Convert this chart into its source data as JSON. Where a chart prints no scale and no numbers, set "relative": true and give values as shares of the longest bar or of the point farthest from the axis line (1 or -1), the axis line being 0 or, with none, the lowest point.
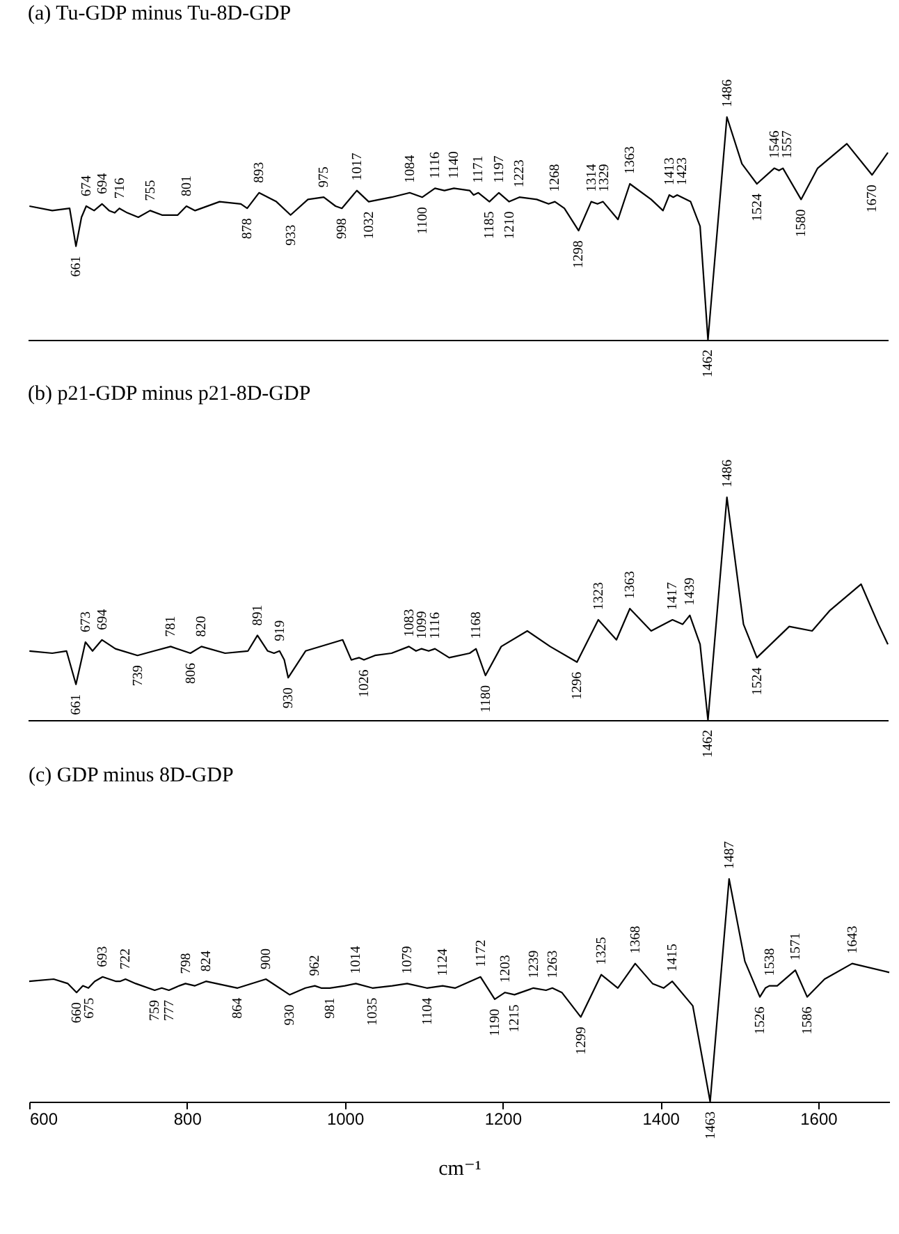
{
  "chart_data": [
    {
      "type": "line",
      "relative": true,
      "title": "(a) Tu-GDP minus Tu-8D-GDP",
      "xlim": [
        600,
        1690
      ],
      "tick_labels": false,
      "series": [
        {
          "color": "#000000",
          "x": [
            602,
            631,
            653,
            661,
            668,
            674,
            684,
            694,
            703,
            710,
            716,
            726,
            740,
            755,
            770,
            790,
            801,
            812,
            843,
            870,
            878,
            893,
            915,
            933,
            955,
            975,
            990,
            998,
            1017,
            1032,
            1061,
            1084,
            1100,
            1116,
            1128,
            1140,
            1160,
            1165,
            1171,
            1185,
            1197,
            1210,
            1223,
            1245,
            1260,
            1268,
            1280,
            1298,
            1314,
            1322,
            1329,
            1348,
            1363,
            1390,
            1405,
            1413,
            1418,
            1423,
            1440,
            1452,
            1462,
            1486,
            1505,
            1524,
            1546,
            1552,
            1557,
            1580,
            1601,
            1638,
            1670,
            1690
          ],
          "values": [
            0.6,
            0.58,
            0.59,
            0.42,
            0.55,
            0.6,
            0.58,
            0.61,
            0.58,
            0.57,
            0.59,
            0.57,
            0.55,
            0.58,
            0.56,
            0.56,
            0.6,
            0.58,
            0.62,
            0.61,
            0.59,
            0.66,
            0.62,
            0.56,
            0.63,
            0.64,
            0.6,
            0.59,
            0.67,
            0.62,
            0.64,
            0.66,
            0.64,
            0.68,
            0.67,
            0.68,
            0.67,
            0.65,
            0.66,
            0.62,
            0.66,
            0.62,
            0.64,
            0.63,
            0.61,
            0.62,
            0.59,
            0.49,
            0.62,
            0.61,
            0.62,
            0.54,
            0.7,
            0.63,
            0.58,
            0.65,
            0.64,
            0.65,
            0.62,
            0.51,
            0.0,
            1.0,
            0.79,
            0.7,
            0.77,
            0.76,
            0.77,
            0.63,
            0.77,
            0.88,
            0.74,
            0.84
          ]
        }
      ],
      "annotations": [
        {
          "text": "661",
          "x": 661,
          "y": 0.42
        },
        {
          "text": "674",
          "x": 674,
          "y": 0.6
        },
        {
          "text": "694",
          "x": 694,
          "y": 0.61
        },
        {
          "text": "716",
          "x": 716,
          "y": 0.59
        },
        {
          "text": "755",
          "x": 755,
          "y": 0.58
        },
        {
          "text": "801",
          "x": 801,
          "y": 0.6
        },
        {
          "text": "878",
          "x": 878,
          "y": 0.59
        },
        {
          "text": "893",
          "x": 893,
          "y": 0.66
        },
        {
          "text": "933",
          "x": 933,
          "y": 0.56
        },
        {
          "text": "975",
          "x": 975,
          "y": 0.64
        },
        {
          "text": "998",
          "x": 998,
          "y": 0.59
        },
        {
          "text": "1017",
          "x": 1017,
          "y": 0.67
        },
        {
          "text": "1032",
          "x": 1032,
          "y": 0.62
        },
        {
          "text": "1084",
          "x": 1084,
          "y": 0.66
        },
        {
          "text": "1100",
          "x": 1100,
          "y": 0.64
        },
        {
          "text": "1116",
          "x": 1116,
          "y": 0.68
        },
        {
          "text": "1140",
          "x": 1140,
          "y": 0.68
        },
        {
          "text": "1171",
          "x": 1171,
          "y": 0.66
        },
        {
          "text": "1185",
          "x": 1185,
          "y": 0.62
        },
        {
          "text": "1197",
          "x": 1197,
          "y": 0.66
        },
        {
          "text": "1210",
          "x": 1210,
          "y": 0.62
        },
        {
          "text": "1223",
          "x": 1223,
          "y": 0.64
        },
        {
          "text": "1268",
          "x": 1268,
          "y": 0.62
        },
        {
          "text": "1298",
          "x": 1298,
          "y": 0.49
        },
        {
          "text": "1314",
          "x": 1314,
          "y": 0.62
        },
        {
          "text": "1329",
          "x": 1329,
          "y": 0.62
        },
        {
          "text": "1363",
          "x": 1363,
          "y": 0.7
        },
        {
          "text": "1413",
          "x": 1413,
          "y": 0.65
        },
        {
          "text": "1423",
          "x": 1423,
          "y": 0.65
        },
        {
          "text": "1462",
          "x": 1462,
          "y": 0.0
        },
        {
          "text": "1486",
          "x": 1486,
          "y": 1.0
        },
        {
          "text": "1524",
          "x": 1524,
          "y": 0.7
        },
        {
          "text": "1546",
          "x": 1546,
          "y": 0.77
        },
        {
          "text": "1557",
          "x": 1557,
          "y": 0.77
        },
        {
          "text": "1580",
          "x": 1580,
          "y": 0.63
        },
        {
          "text": "1670",
          "x": 1670,
          "y": 0.74
        }
      ]
    },
    {
      "type": "line",
      "relative": true,
      "title": "(b) p21-GDP minus p21-8D-GDP",
      "xlim": [
        600,
        1690
      ],
      "tick_labels": false,
      "series": [
        {
          "color": "#000000",
          "x": [
            602,
            631,
            649,
            661,
            668,
            673,
            682,
            694,
            711,
            739,
            760,
            781,
            806,
            820,
            850,
            879,
            891,
            904,
            912,
            919,
            925,
            930,
            952,
            999,
            1010,
            1020,
            1026,
            1040,
            1061,
            1083,
            1092,
            1099,
            1108,
            1116,
            1134,
            1160,
            1168,
            1180,
            1200,
            1233,
            1262,
            1296,
            1323,
            1346,
            1363,
            1390,
            1417,
            1430,
            1439,
            1452,
            1462,
            1486,
            1507,
            1524,
            1565,
            1594,
            1616,
            1656,
            1678,
            1690
          ],
          "values": [
            0.31,
            0.3,
            0.31,
            0.16,
            0.27,
            0.35,
            0.31,
            0.36,
            0.32,
            0.29,
            0.31,
            0.33,
            0.3,
            0.33,
            0.3,
            0.31,
            0.38,
            0.31,
            0.3,
            0.31,
            0.27,
            0.19,
            0.31,
            0.36,
            0.27,
            0.28,
            0.27,
            0.29,
            0.3,
            0.33,
            0.31,
            0.32,
            0.31,
            0.32,
            0.28,
            0.3,
            0.32,
            0.2,
            0.33,
            0.4,
            0.33,
            0.26,
            0.45,
            0.36,
            0.5,
            0.4,
            0.45,
            0.43,
            0.47,
            0.34,
            0.0,
            1.0,
            0.43,
            0.28,
            0.42,
            0.4,
            0.49,
            0.61,
            0.43,
            0.34
          ]
        }
      ],
      "annotations": [
        {
          "text": "661",
          "x": 661,
          "y": 0.16
        },
        {
          "text": "673",
          "x": 673,
          "y": 0.35
        },
        {
          "text": "694",
          "x": 694,
          "y": 0.36
        },
        {
          "text": "739",
          "x": 739,
          "y": 0.29
        },
        {
          "text": "781",
          "x": 781,
          "y": 0.33
        },
        {
          "text": "806",
          "x": 806,
          "y": 0.3
        },
        {
          "text": "820",
          "x": 820,
          "y": 0.33
        },
        {
          "text": "891",
          "x": 891,
          "y": 0.38
        },
        {
          "text": "919",
          "x": 919,
          "y": 0.31
        },
        {
          "text": "930",
          "x": 930,
          "y": 0.19
        },
        {
          "text": "1026",
          "x": 1026,
          "y": 0.27
        },
        {
          "text": "1083",
          "x": 1083,
          "y": 0.33
        },
        {
          "text": "1099",
          "x": 1099,
          "y": 0.32
        },
        {
          "text": "1116",
          "x": 1116,
          "y": 0.32
        },
        {
          "text": "1168",
          "x": 1168,
          "y": 0.32
        },
        {
          "text": "1180",
          "x": 1180,
          "y": 0.2
        },
        {
          "text": "1296",
          "x": 1296,
          "y": 0.26
        },
        {
          "text": "1323",
          "x": 1323,
          "y": 0.45
        },
        {
          "text": "1363",
          "x": 1363,
          "y": 0.5
        },
        {
          "text": "1417",
          "x": 1417,
          "y": 0.45
        },
        {
          "text": "1439",
          "x": 1439,
          "y": 0.47
        },
        {
          "text": "1462",
          "x": 1462,
          "y": 0.0
        },
        {
          "text": "1486",
          "x": 1486,
          "y": 1.0
        },
        {
          "text": "1524",
          "x": 1524,
          "y": 0.28
        }
      ]
    },
    {
      "type": "line",
      "relative": true,
      "title": "(c) GDP minus 8D-GDP",
      "xlabel": "cm⁻¹",
      "xlim": [
        600,
        1690
      ],
      "xticks": [
        600,
        800,
        1000,
        1200,
        1400,
        1600
      ],
      "series": [
        {
          "color": "#000000",
          "x": [
            600,
            631,
            649,
            660,
            668,
            675,
            683,
            693,
            710,
            715,
            722,
            735,
            759,
            768,
            777,
            790,
            798,
            810,
            824,
            864,
            900,
            930,
            950,
            962,
            970,
            981,
            1000,
            1014,
            1035,
            1060,
            1079,
            1104,
            1124,
            1140,
            1172,
            1190,
            1203,
            1215,
            1239,
            1255,
            1263,
            1275,
            1299,
            1325,
            1346,
            1368,
            1390,
            1404,
            1415,
            1441,
            1463,
            1487,
            1507,
            1526,
            1533,
            1538,
            1548,
            1571,
            1586,
            1608,
            1643,
            1690
          ],
          "values": [
            0.54,
            0.55,
            0.53,
            0.49,
            0.52,
            0.51,
            0.54,
            0.56,
            0.54,
            0.54,
            0.55,
            0.53,
            0.5,
            0.51,
            0.5,
            0.52,
            0.53,
            0.52,
            0.54,
            0.51,
            0.55,
            0.48,
            0.51,
            0.52,
            0.51,
            0.51,
            0.52,
            0.53,
            0.51,
            0.52,
            0.53,
            0.51,
            0.52,
            0.51,
            0.56,
            0.46,
            0.49,
            0.48,
            0.51,
            0.5,
            0.51,
            0.49,
            0.38,
            0.57,
            0.51,
            0.62,
            0.53,
            0.51,
            0.54,
            0.43,
            0.0,
            1.0,
            0.63,
            0.47,
            0.51,
            0.52,
            0.52,
            0.59,
            0.47,
            0.55,
            0.62,
            0.58
          ]
        }
      ],
      "annotations": [
        {
          "text": "660",
          "x": 660,
          "y": 0.49
        },
        {
          "text": "675",
          "x": 675,
          "y": 0.51
        },
        {
          "text": "693",
          "x": 693,
          "y": 0.56
        },
        {
          "text": "722",
          "x": 722,
          "y": 0.55
        },
        {
          "text": "759",
          "x": 759,
          "y": 0.5
        },
        {
          "text": "777",
          "x": 777,
          "y": 0.5
        },
        {
          "text": "798",
          "x": 798,
          "y": 0.53
        },
        {
          "text": "824",
          "x": 824,
          "y": 0.54
        },
        {
          "text": "864",
          "x": 864,
          "y": 0.51
        },
        {
          "text": "900",
          "x": 900,
          "y": 0.55
        },
        {
          "text": "930",
          "x": 930,
          "y": 0.48
        },
        {
          "text": "962",
          "x": 962,
          "y": 0.52
        },
        {
          "text": "981",
          "x": 981,
          "y": 0.51
        },
        {
          "text": "1014",
          "x": 1014,
          "y": 0.53
        },
        {
          "text": "1035",
          "x": 1035,
          "y": 0.51
        },
        {
          "text": "1079",
          "x": 1079,
          "y": 0.53
        },
        {
          "text": "1104",
          "x": 1104,
          "y": 0.51
        },
        {
          "text": "1124",
          "x": 1124,
          "y": 0.52
        },
        {
          "text": "1172",
          "x": 1172,
          "y": 0.56
        },
        {
          "text": "1190",
          "x": 1190,
          "y": 0.46
        },
        {
          "text": "1203",
          "x": 1203,
          "y": 0.49
        },
        {
          "text": "1215",
          "x": 1215,
          "y": 0.48
        },
        {
          "text": "1239",
          "x": 1239,
          "y": 0.51
        },
        {
          "text": "1263",
          "x": 1263,
          "y": 0.51
        },
        {
          "text": "1299",
          "x": 1299,
          "y": 0.38
        },
        {
          "text": "1325",
          "x": 1325,
          "y": 0.57
        },
        {
          "text": "1368",
          "x": 1368,
          "y": 0.62
        },
        {
          "text": "1415",
          "x": 1415,
          "y": 0.54
        },
        {
          "text": "1463",
          "x": 1463,
          "y": 0.0
        },
        {
          "text": "1487",
          "x": 1487,
          "y": 1.0
        },
        {
          "text": "1526",
          "x": 1526,
          "y": 0.47
        },
        {
          "text": "1538",
          "x": 1538,
          "y": 0.52
        },
        {
          "text": "1571",
          "x": 1571,
          "y": 0.59
        },
        {
          "text": "1586",
          "x": 1586,
          "y": 0.47
        },
        {
          "text": "1643",
          "x": 1643,
          "y": 0.62
        }
      ]
    }
  ]
}
